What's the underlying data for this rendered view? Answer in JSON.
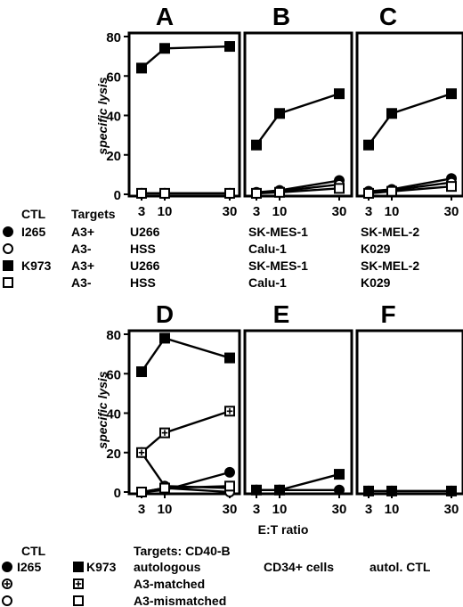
{
  "chart_data": [
    {
      "type": "line",
      "panel": "A",
      "ylabel": "specific lysis",
      "x": [
        3,
        10,
        30
      ],
      "ylim": [
        0,
        80
      ],
      "yticks": [
        0,
        20,
        40,
        60,
        80
      ],
      "series": [
        {
          "name": "I265 U266",
          "marker": "filled-circle",
          "values": [
            0.5,
            0.5,
            0.5
          ]
        },
        {
          "name": "I265 HSS",
          "marker": "open-circle",
          "values": [
            0.5,
            0.5,
            0.5
          ]
        },
        {
          "name": "K973 U266",
          "marker": "filled-square",
          "values": [
            64,
            74,
            75
          ]
        },
        {
          "name": "K973 HSS",
          "marker": "open-square",
          "values": [
            0.5,
            0.5,
            0.5
          ]
        }
      ]
    },
    {
      "type": "line",
      "panel": "B",
      "x": [
        3,
        10,
        30
      ],
      "ylim": [
        0,
        80
      ],
      "series": [
        {
          "name": "I265 SK-MES-1",
          "marker": "filled-circle",
          "values": [
            1,
            2,
            7
          ]
        },
        {
          "name": "I265 Calu-1",
          "marker": "open-circle",
          "values": [
            0.5,
            1.5,
            5
          ]
        },
        {
          "name": "K973 SK-MES-1",
          "marker": "filled-square",
          "values": [
            25,
            41,
            51
          ]
        },
        {
          "name": "K973 Calu-1",
          "marker": "open-square",
          "values": [
            0.5,
            1,
            3
          ]
        }
      ]
    },
    {
      "type": "line",
      "panel": "C",
      "x": [
        3,
        10,
        30
      ],
      "ylim": [
        0,
        80
      ],
      "series": [
        {
          "name": "I265 SK-MEL-2",
          "marker": "filled-circle",
          "values": [
            1.5,
            2.5,
            8
          ]
        },
        {
          "name": "I265 K029",
          "marker": "open-circle",
          "values": [
            1,
            2,
            6
          ]
        },
        {
          "name": "K973 SK-MEL-2",
          "marker": "filled-square",
          "values": [
            25,
            41,
            51
          ]
        },
        {
          "name": "K973 K029",
          "marker": "open-square",
          "values": [
            0.5,
            1.5,
            4
          ]
        }
      ]
    },
    {
      "type": "line",
      "panel": "D",
      "ylabel": "specific lysis",
      "x": [
        3,
        10,
        30
      ],
      "ylim": [
        0,
        80
      ],
      "yticks": [
        0,
        20,
        40,
        60,
        80
      ],
      "series": [
        {
          "name": "I265 autologous",
          "marker": "filled-circle",
          "values": [
            0,
            1,
            10
          ]
        },
        {
          "name": "I265 A3-matched",
          "marker": "crossed-circle",
          "values": [
            20,
            3,
            2
          ]
        },
        {
          "name": "I265 A3-mismatched",
          "marker": "open-circle",
          "values": [
            0,
            2,
            0
          ]
        },
        {
          "name": "K973 autologous",
          "marker": "filled-square",
          "values": [
            61,
            78,
            68
          ]
        },
        {
          "name": "K973 A3-matched",
          "marker": "crossed-square",
          "values": [
            20,
            30,
            41
          ]
        },
        {
          "name": "K973 A3-mismatched",
          "marker": "open-square",
          "values": [
            0,
            2,
            3
          ]
        }
      ]
    },
    {
      "type": "line",
      "panel": "E",
      "x": [
        3,
        10,
        30
      ],
      "ylim": [
        0,
        80
      ],
      "series": [
        {
          "name": "I265 CD34+ cells",
          "marker": "filled-circle",
          "values": [
            1,
            1,
            1
          ]
        },
        {
          "name": "K973 CD34+ cells",
          "marker": "filled-square",
          "values": [
            1,
            1,
            9
          ]
        }
      ]
    },
    {
      "type": "line",
      "panel": "F",
      "x": [
        3,
        10,
        30
      ],
      "ylim": [
        0,
        80
      ],
      "series": [
        {
          "name": "I265 autol. CTL",
          "marker": "filled-circle",
          "values": [
            0.5,
            0.5,
            0.5
          ]
        },
        {
          "name": "K973 autol. CTL",
          "marker": "filled-square",
          "values": [
            0.5,
            0.5,
            0.5
          ]
        }
      ]
    }
  ],
  "xlabel": "E:T ratio",
  "legend_top": {
    "ctl_header": "CTL",
    "targets_header": "Targets",
    "rows": [
      {
        "marker": "filled-circle",
        "ctl": "I265",
        "hla": "A3+",
        "a": "U266",
        "b": "SK-MES-1",
        "c": "SK-MEL-2"
      },
      {
        "marker": "open-circle",
        "ctl": "",
        "hla": "A3-",
        "a": "HSS",
        "b": "Calu-1",
        "c": "K029"
      },
      {
        "marker": "filled-square",
        "ctl": "K973",
        "hla": "A3+",
        "a": "U266",
        "b": "SK-MES-1",
        "c": "SK-MEL-2"
      },
      {
        "marker": "open-square",
        "ctl": "",
        "hla": "A3-",
        "a": "HSS",
        "b": "Calu-1",
        "c": "K029"
      }
    ]
  },
  "legend_bottom": {
    "ctl_header": "CTL",
    "targets_header": "Targets: CD40-B",
    "ctl_1": "I265",
    "ctl_2": "K973",
    "rows": [
      {
        "m1": "filled-circle",
        "m2": "filled-square",
        "label": "autologous"
      },
      {
        "m1": "crossed-circle",
        "m2": "crossed-square",
        "label": "A3-matched"
      },
      {
        "m1": "open-circle",
        "m2": "open-square",
        "label": "A3-mismatched"
      }
    ],
    "label_e": "CD34+ cells",
    "label_f": "autol. CTL"
  }
}
